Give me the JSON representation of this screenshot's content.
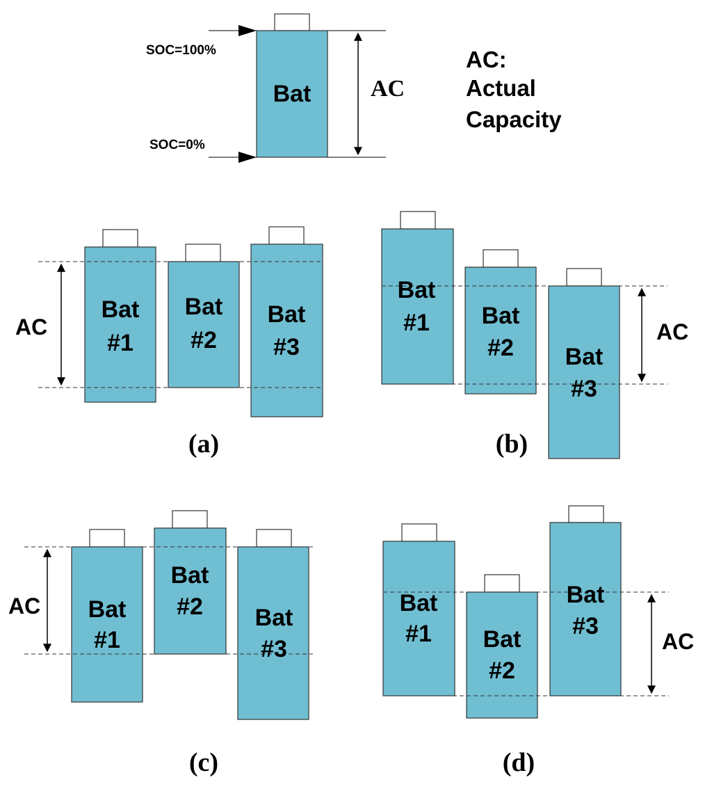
{
  "top": {
    "battery_label": "Bat",
    "soc_full": "SOC=100%",
    "soc_empty": "SOC=0%",
    "ac_label": "AC",
    "legend_line1": "AC:",
    "legend_line2": "Actual",
    "legend_line3": "Capacity"
  },
  "panels": {
    "a": {
      "caption": "(a)",
      "ac": "AC",
      "bat1": {
        "line1": "Bat",
        "line2": "#1"
      },
      "bat2": {
        "line1": "Bat",
        "line2": "#2"
      },
      "bat3": {
        "line1": "Bat",
        "line2": "#3"
      }
    },
    "b": {
      "caption": "(b)",
      "ac": "AC",
      "bat1": {
        "line1": "Bat",
        "line2": "#1"
      },
      "bat2": {
        "line1": "Bat",
        "line2": "#2"
      },
      "bat3": {
        "line1": "Bat",
        "line2": "#3"
      }
    },
    "c": {
      "caption": "(c)",
      "ac": "AC",
      "bat1": {
        "line1": "Bat",
        "line2": "#1"
      },
      "bat2": {
        "line1": "Bat",
        "line2": "#2"
      },
      "bat3": {
        "line1": "Bat",
        "line2": "#3"
      }
    },
    "d": {
      "caption": "(d)",
      "ac": "AC",
      "bat1": {
        "line1": "Bat",
        "line2": "#1"
      },
      "bat2": {
        "line1": "Bat",
        "line2": "#2"
      },
      "bat3": {
        "line1": "Bat",
        "line2": "#3"
      }
    }
  },
  "colors": {
    "battery_fill": "#70bed2",
    "outline": "#333333"
  }
}
